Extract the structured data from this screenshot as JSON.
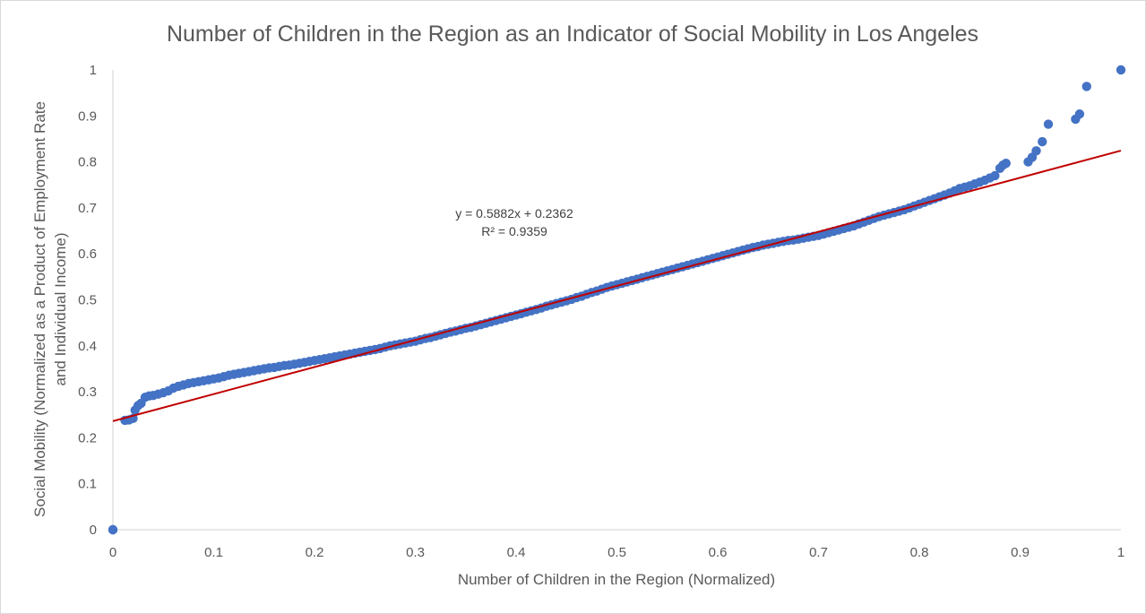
{
  "chart_data": {
    "type": "scatter",
    "title": "Number of Children in the Region as an Indicator of Social Mobility in Los Angeles",
    "xlabel": "Number of Children in the Region (Normalized)",
    "ylabel_line1": "Social Mobility (Normalized as a Product of Employment Rate",
    "ylabel_line2": "and Individual Income)",
    "xlim": [
      0,
      1
    ],
    "ylim": [
      0,
      1
    ],
    "x_ticks": [
      "0",
      "0.1",
      "0.2",
      "0.3",
      "0.4",
      "0.5",
      "0.6",
      "0.7",
      "0.8",
      "0.9",
      "1"
    ],
    "y_ticks": [
      "0",
      "0.1",
      "0.2",
      "0.3",
      "0.4",
      "0.5",
      "0.6",
      "0.7",
      "0.8",
      "0.9",
      "1"
    ],
    "grid": false,
    "legend": "none",
    "colors": {
      "points": "#4472C4",
      "trendline": "#C00000",
      "axis": "#D9D9D9",
      "border": "#D9D9D9"
    },
    "trendline": {
      "equation": "y = 0.5882x + 0.2362",
      "r_squared": "R² = 0.9359",
      "slope": 0.5882,
      "intercept": 0.2362
    },
    "series": [
      {
        "points": [
          [
            0,
            0
          ],
          [
            0.0,
            0.0
          ],
          [
            0.012,
            0.238
          ],
          [
            0.016,
            0.239
          ],
          [
            0.02,
            0.242
          ],
          [
            0.022,
            0.26
          ],
          [
            0.025,
            0.27
          ],
          [
            0.028,
            0.275
          ],
          [
            0.032,
            0.288
          ],
          [
            0.036,
            0.291
          ],
          [
            0.04,
            0.292
          ],
          [
            0.045,
            0.295
          ],
          [
            0.05,
            0.298
          ],
          [
            0.055,
            0.302
          ],
          [
            0.06,
            0.308
          ],
          [
            0.065,
            0.312
          ],
          [
            0.07,
            0.315
          ],
          [
            0.075,
            0.318
          ],
          [
            0.08,
            0.32
          ],
          [
            0.085,
            0.322
          ],
          [
            0.09,
            0.324
          ],
          [
            0.095,
            0.326
          ],
          [
            0.1,
            0.328
          ],
          [
            0.105,
            0.33
          ],
          [
            0.11,
            0.333
          ],
          [
            0.115,
            0.336
          ],
          [
            0.12,
            0.338
          ],
          [
            0.125,
            0.34
          ],
          [
            0.13,
            0.342
          ],
          [
            0.135,
            0.344
          ],
          [
            0.14,
            0.346
          ],
          [
            0.145,
            0.348
          ],
          [
            0.15,
            0.35
          ],
          [
            0.155,
            0.352
          ],
          [
            0.16,
            0.353
          ],
          [
            0.165,
            0.355
          ],
          [
            0.17,
            0.357
          ],
          [
            0.175,
            0.358
          ],
          [
            0.18,
            0.36
          ],
          [
            0.185,
            0.362
          ],
          [
            0.19,
            0.364
          ],
          [
            0.195,
            0.366
          ],
          [
            0.2,
            0.368
          ],
          [
            0.205,
            0.37
          ],
          [
            0.21,
            0.372
          ],
          [
            0.215,
            0.374
          ],
          [
            0.22,
            0.376
          ],
          [
            0.225,
            0.378
          ],
          [
            0.23,
            0.38
          ],
          [
            0.235,
            0.382
          ],
          [
            0.24,
            0.384
          ],
          [
            0.245,
            0.386
          ],
          [
            0.25,
            0.388
          ],
          [
            0.255,
            0.39
          ],
          [
            0.26,
            0.392
          ],
          [
            0.265,
            0.394
          ],
          [
            0.27,
            0.397
          ],
          [
            0.275,
            0.4
          ],
          [
            0.28,
            0.402
          ],
          [
            0.285,
            0.404
          ],
          [
            0.29,
            0.406
          ],
          [
            0.295,
            0.408
          ],
          [
            0.3,
            0.41
          ],
          [
            0.305,
            0.413
          ],
          [
            0.31,
            0.416
          ],
          [
            0.315,
            0.418
          ],
          [
            0.32,
            0.421
          ],
          [
            0.325,
            0.424
          ],
          [
            0.33,
            0.427
          ],
          [
            0.335,
            0.43
          ],
          [
            0.34,
            0.432
          ],
          [
            0.345,
            0.435
          ],
          [
            0.35,
            0.438
          ],
          [
            0.355,
            0.44
          ],
          [
            0.36,
            0.443
          ],
          [
            0.365,
            0.446
          ],
          [
            0.37,
            0.449
          ],
          [
            0.375,
            0.452
          ],
          [
            0.38,
            0.455
          ],
          [
            0.385,
            0.458
          ],
          [
            0.39,
            0.461
          ],
          [
            0.395,
            0.464
          ],
          [
            0.4,
            0.467
          ],
          [
            0.405,
            0.47
          ],
          [
            0.41,
            0.473
          ],
          [
            0.415,
            0.476
          ],
          [
            0.42,
            0.479
          ],
          [
            0.425,
            0.482
          ],
          [
            0.43,
            0.486
          ],
          [
            0.435,
            0.489
          ],
          [
            0.44,
            0.492
          ],
          [
            0.445,
            0.495
          ],
          [
            0.45,
            0.498
          ],
          [
            0.455,
            0.501
          ],
          [
            0.46,
            0.505
          ],
          [
            0.465,
            0.508
          ],
          [
            0.47,
            0.512
          ],
          [
            0.475,
            0.516
          ],
          [
            0.48,
            0.519
          ],
          [
            0.485,
            0.523
          ],
          [
            0.49,
            0.527
          ],
          [
            0.495,
            0.53
          ],
          [
            0.5,
            0.533
          ],
          [
            0.505,
            0.536
          ],
          [
            0.51,
            0.539
          ],
          [
            0.515,
            0.542
          ],
          [
            0.52,
            0.545
          ],
          [
            0.525,
            0.548
          ],
          [
            0.53,
            0.551
          ],
          [
            0.535,
            0.554
          ],
          [
            0.54,
            0.557
          ],
          [
            0.545,
            0.56
          ],
          [
            0.55,
            0.563
          ],
          [
            0.555,
            0.566
          ],
          [
            0.56,
            0.569
          ],
          [
            0.565,
            0.572
          ],
          [
            0.57,
            0.575
          ],
          [
            0.575,
            0.578
          ],
          [
            0.58,
            0.581
          ],
          [
            0.585,
            0.584
          ],
          [
            0.59,
            0.587
          ],
          [
            0.595,
            0.59
          ],
          [
            0.6,
            0.593
          ],
          [
            0.605,
            0.596
          ],
          [
            0.61,
            0.599
          ],
          [
            0.615,
            0.602
          ],
          [
            0.62,
            0.605
          ],
          [
            0.625,
            0.608
          ],
          [
            0.63,
            0.611
          ],
          [
            0.635,
            0.614
          ],
          [
            0.64,
            0.616
          ],
          [
            0.645,
            0.619
          ],
          [
            0.65,
            0.621
          ],
          [
            0.655,
            0.623
          ],
          [
            0.66,
            0.625
          ],
          [
            0.665,
            0.627
          ],
          [
            0.67,
            0.629
          ],
          [
            0.675,
            0.63
          ],
          [
            0.68,
            0.632
          ],
          [
            0.685,
            0.634
          ],
          [
            0.69,
            0.636
          ],
          [
            0.695,
            0.638
          ],
          [
            0.7,
            0.64
          ],
          [
            0.705,
            0.643
          ],
          [
            0.71,
            0.646
          ],
          [
            0.715,
            0.649
          ],
          [
            0.72,
            0.652
          ],
          [
            0.725,
            0.655
          ],
          [
            0.73,
            0.658
          ],
          [
            0.735,
            0.661
          ],
          [
            0.74,
            0.665
          ],
          [
            0.745,
            0.669
          ],
          [
            0.75,
            0.673
          ],
          [
            0.755,
            0.677
          ],
          [
            0.76,
            0.681
          ],
          [
            0.765,
            0.684
          ],
          [
            0.77,
            0.687
          ],
          [
            0.775,
            0.69
          ],
          [
            0.78,
            0.693
          ],
          [
            0.785,
            0.696
          ],
          [
            0.79,
            0.7
          ],
          [
            0.795,
            0.704
          ],
          [
            0.8,
            0.708
          ],
          [
            0.805,
            0.712
          ],
          [
            0.81,
            0.716
          ],
          [
            0.815,
            0.72
          ],
          [
            0.82,
            0.724
          ],
          [
            0.825,
            0.728
          ],
          [
            0.83,
            0.732
          ],
          [
            0.835,
            0.737
          ],
          [
            0.84,
            0.742
          ],
          [
            0.845,
            0.745
          ],
          [
            0.85,
            0.748
          ],
          [
            0.855,
            0.752
          ],
          [
            0.86,
            0.756
          ],
          [
            0.865,
            0.76
          ],
          [
            0.87,
            0.765
          ],
          [
            0.875,
            0.77
          ],
          [
            0.88,
            0.786
          ],
          [
            0.883,
            0.793
          ],
          [
            0.886,
            0.797
          ],
          [
            0.908,
            0.8
          ],
          [
            0.912,
            0.81
          ],
          [
            0.916,
            0.824
          ],
          [
            0.922,
            0.844
          ],
          [
            0.928,
            0.882
          ],
          [
            0.955,
            0.893
          ],
          [
            0.959,
            0.904
          ],
          [
            0.966,
            0.964
          ],
          [
            1.0,
            1.0
          ]
        ]
      }
    ]
  }
}
